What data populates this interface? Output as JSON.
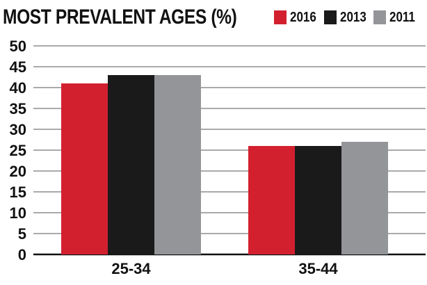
{
  "chart_data": {
    "type": "bar",
    "title": "MOST PREVALENT AGES (%)",
    "xlabel": "",
    "ylabel": "",
    "categories": [
      "25-34",
      "35-44"
    ],
    "series": [
      {
        "name": "2016",
        "values": [
          41,
          26
        ],
        "color": "#d3202f"
      },
      {
        "name": "2013",
        "values": [
          43,
          26
        ],
        "color": "#1a1a1a"
      },
      {
        "name": "2011",
        "values": [
          43,
          27
        ],
        "color": "#939598"
      }
    ],
    "ylim": [
      0,
      50
    ],
    "yticks": [
      "0",
      "5",
      "10",
      "15",
      "20",
      "25",
      "30",
      "35",
      "40",
      "45",
      "50"
    ],
    "grid": true,
    "legend_position": "top-right"
  }
}
